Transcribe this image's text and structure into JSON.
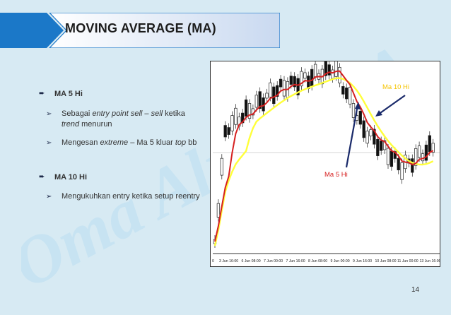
{
  "slide": {
    "title": "MOVING AVERAGE (MA)",
    "page_number": "14",
    "watermark": "Oma Alpha MA"
  },
  "bullets": [
    {
      "label": "MA 5 Hi",
      "subs": [
        {
          "parts": [
            "Sebagai ",
            "entry point sell",
            " – ",
            "sell",
            " ketika ",
            "trend",
            " menurun"
          ]
        },
        {
          "parts": [
            "Mengesan ",
            "extreme",
            " – Ma 5 kluar ",
            "top",
            " bb"
          ]
        }
      ]
    },
    {
      "label": "MA 10 Hi",
      "subs": [
        {
          "parts": [
            "Mengukuhkan entry ketika setup reentry"
          ]
        }
      ]
    }
  ],
  "chart_data": {
    "type": "line",
    "x_tick_labels": [
      "0",
      "3 Jun 16:00",
      "6 Jun 08:00",
      "7 Jun 00:00",
      "7 Jun 16:00",
      "8 Jun 08:00",
      "9 Jun 00:00",
      "9 Jun 16:00",
      "10 Jun 08:00",
      "11 Jun 00:00",
      "13 Jun 16:00"
    ],
    "annotations": [
      {
        "text": "Ma 10 Hi",
        "color": "#f5c400"
      },
      {
        "text": "Ma 5 Hi",
        "color": "#d62020"
      }
    ],
    "colors": {
      "ma5": "#d62020",
      "ma10": "#ffff3a",
      "arrow": "#1a2a6a"
    }
  }
}
